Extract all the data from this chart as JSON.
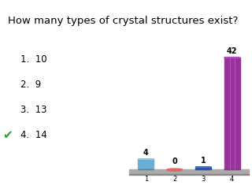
{
  "title": "How many types of crystal structures exist?",
  "title_bg": "#FFFF00",
  "options": [
    "1.  10",
    "2.  9",
    "3.  13",
    "4.  14"
  ],
  "checkmark_item": 3,
  "categories": [
    1,
    2,
    3,
    4
  ],
  "values": [
    4,
    0,
    1,
    42
  ],
  "bar_colors": [
    "#6aaed6",
    "#cc4444",
    "#2255bb",
    "#9b30a0"
  ],
  "bar_top_colors": [
    "#88ccee",
    "#dd6666",
    "#4477cc",
    "#bb44cc"
  ],
  "background_color": "#ffffff",
  "chart_floor_color": "#aaaaaa",
  "label_fontsize": 7,
  "option_fontsize": 8.5,
  "title_fontsize": 9.5
}
